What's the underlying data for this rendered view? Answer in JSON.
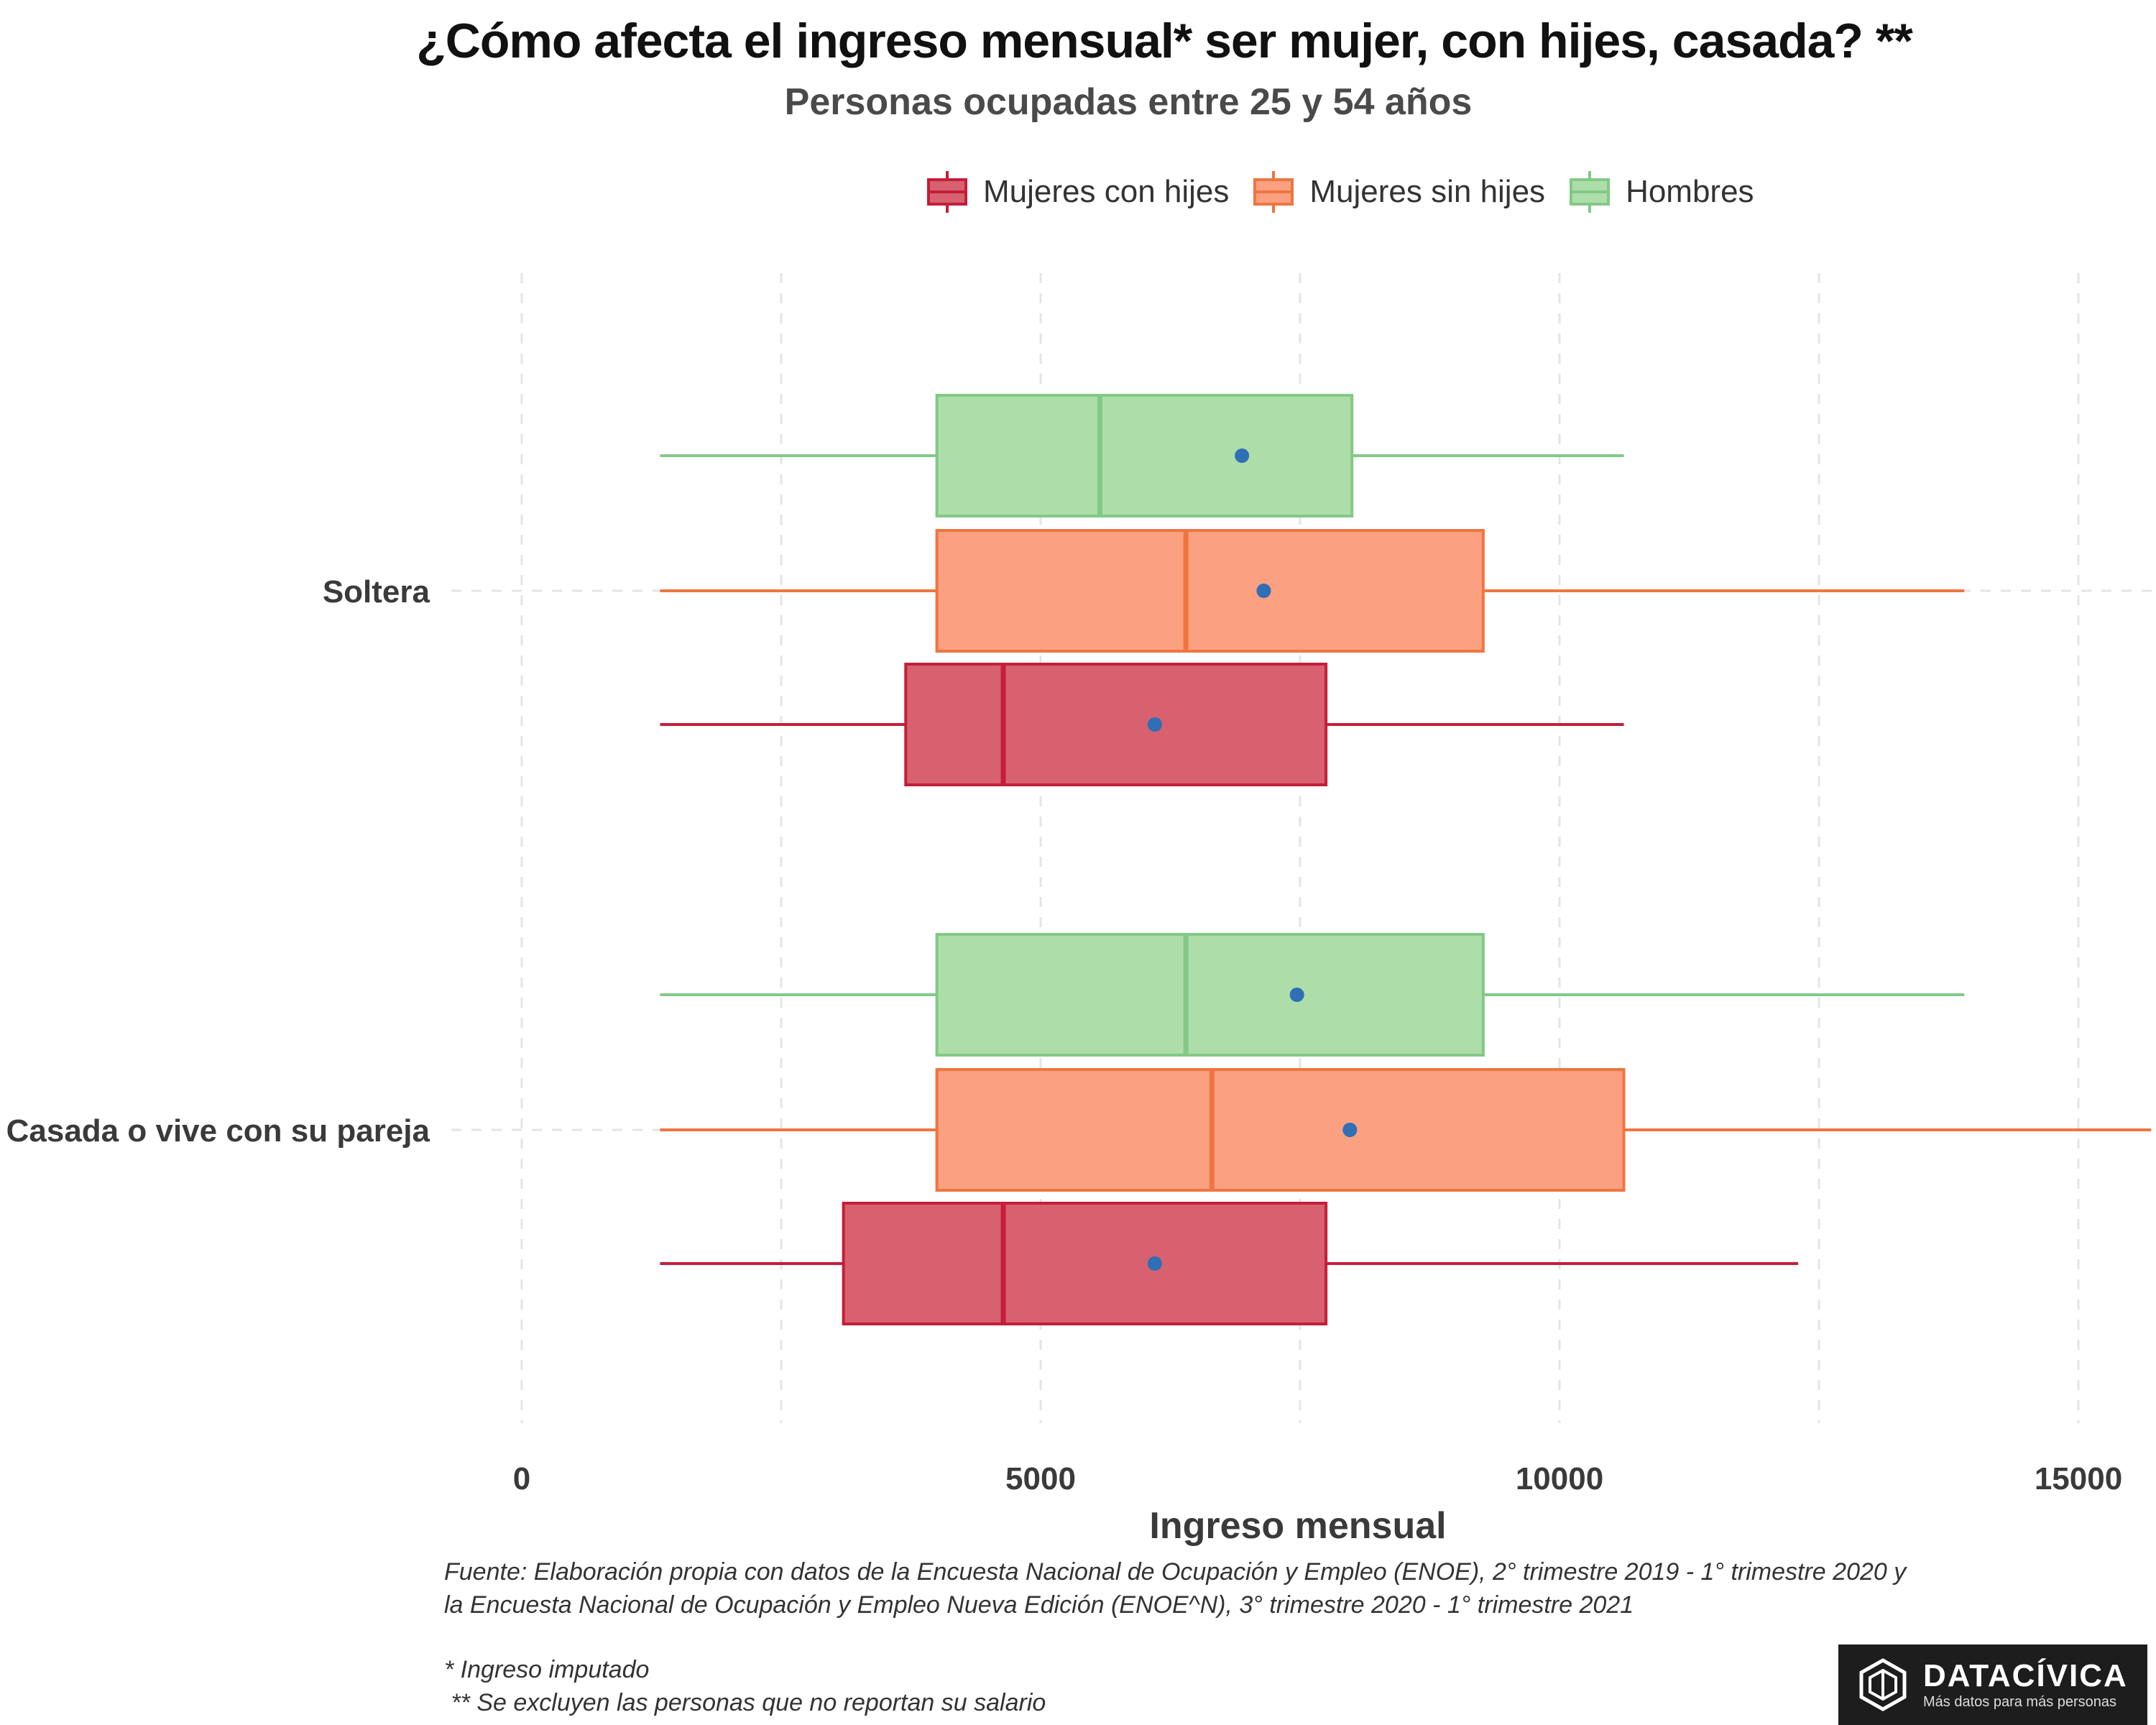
{
  "title": "¿Cómo afecta el ingreso mensual* ser mujer, con hijes, casada? **",
  "subtitle": "Personas ocupadas entre 25 y 54 años",
  "legend": [
    {
      "label": "Mujeres con hijes",
      "fill": "#d7616f",
      "stroke": "#c41e3a"
    },
    {
      "label": "Mujeres sin hijes",
      "fill": "#fba081",
      "stroke": "#ef7540"
    },
    {
      "label": "Hombres",
      "fill": "#addeaa",
      "stroke": "#82c985"
    }
  ],
  "caption": {
    "line1": "Fuente: Elaboración propia con datos de la Encuesta Nacional de Ocupación y Empleo (ENOE), 2° trimestre 2019 - 1° trimestre 2020 y",
    "line2": "la Encuesta Nacional de Ocupación y Empleo Nueva Edición (ENOE^N), 3° trimestre 2020 - 1° trimestre 2021",
    "note1": "* Ingreso imputado",
    "note2": " ** Se excluyen las personas que no reportan su salario"
  },
  "logo": {
    "name": "DATACÍVICA",
    "tagline": "Más datos para más personas"
  },
  "chart_data": {
    "type": "boxplot",
    "orientation": "horizontal",
    "xlabel": "Ingreso mensual",
    "ylabel": "",
    "xlim": [
      0,
      15700
    ],
    "xticks": [
      0,
      5000,
      10000,
      15000
    ],
    "mean_color": "#2e6fb5",
    "grid": true,
    "legend_position": "top",
    "categories": [
      "Soltera",
      "Casada o vive con su pareja"
    ],
    "series": [
      {
        "name": "Hombres",
        "boxes": [
          {
            "category": "Soltera",
            "whisker_low": 1333,
            "q1": 4000,
            "median": 5571,
            "q3": 8000,
            "whisker_high": 10620,
            "mean": 6940
          },
          {
            "category": "Casada o vive con su pareja",
            "whisker_low": 1333,
            "q1": 4000,
            "median": 6400,
            "q3": 9265,
            "whisker_high": 13900,
            "mean": 7470
          }
        ]
      },
      {
        "name": "Mujeres sin hijes",
        "boxes": [
          {
            "category": "Soltera",
            "whisker_low": 1333,
            "q1": 4000,
            "median": 6400,
            "q3": 9265,
            "whisker_high": 13900,
            "mean": 7150
          },
          {
            "category": "Casada o vive con su pareja",
            "whisker_low": 1333,
            "q1": 4000,
            "median": 6650,
            "q3": 10620,
            "whisker_high": 15700,
            "mean": 7980
          }
        ]
      },
      {
        "name": "Mujeres con hijes",
        "boxes": [
          {
            "category": "Soltera",
            "whisker_low": 1333,
            "q1": 3700,
            "median": 4640,
            "q3": 7750,
            "whisker_high": 10620,
            "mean": 6100
          },
          {
            "category": "Casada o vive con su pareja",
            "whisker_low": 1333,
            "q1": 3100,
            "median": 4640,
            "q3": 7750,
            "whisker_high": 12300,
            "mean": 6100
          }
        ]
      }
    ]
  }
}
